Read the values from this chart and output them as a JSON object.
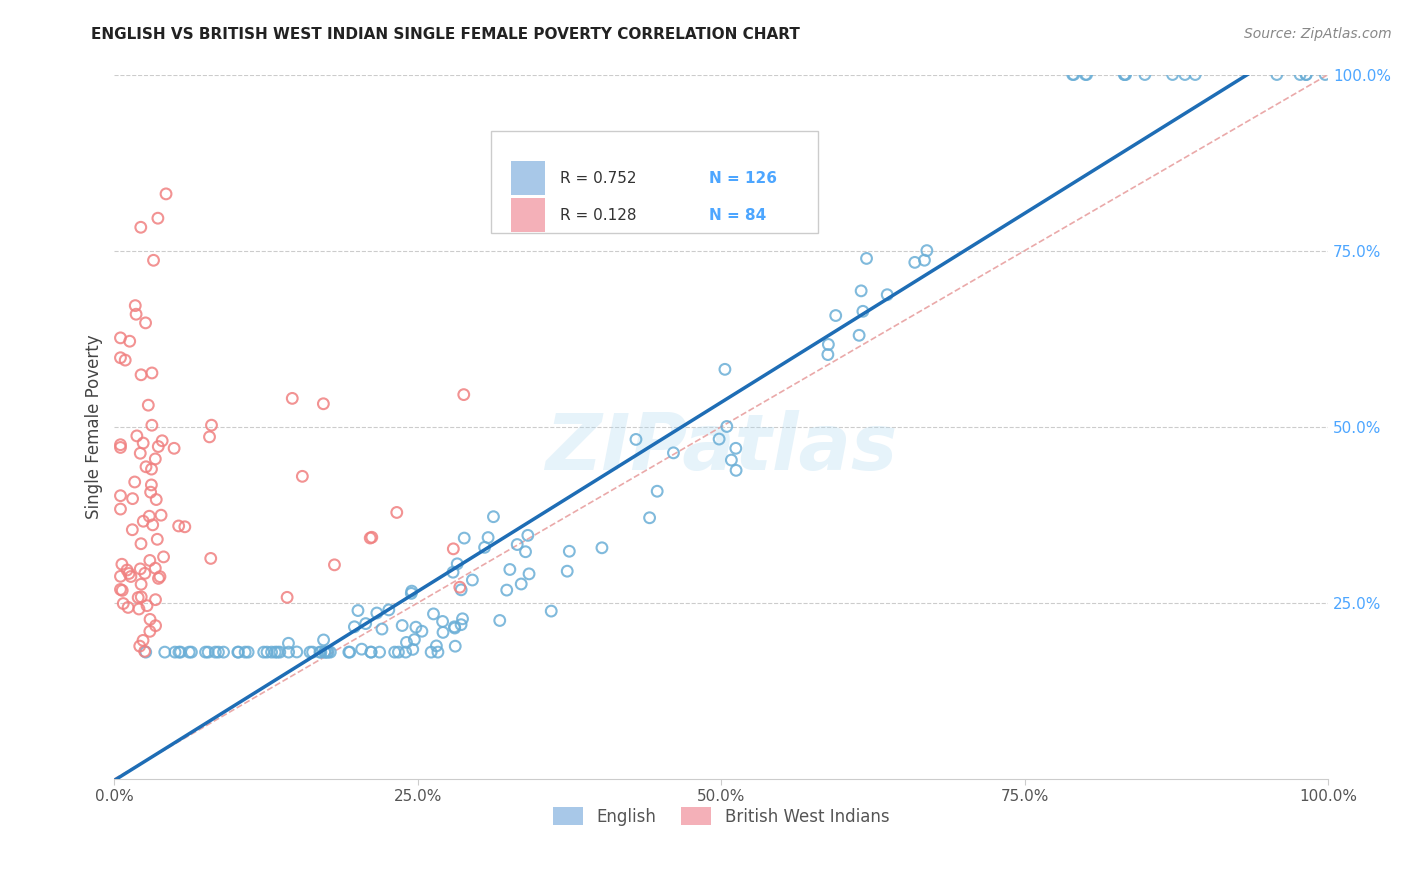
{
  "title": "ENGLISH VS BRITISH WEST INDIAN SINGLE FEMALE POVERTY CORRELATION CHART",
  "source": "Source: ZipAtlas.com",
  "ylabel": "Single Female Poverty",
  "watermark": "ZIPatlas",
  "english_R": 0.752,
  "english_N": 126,
  "bwi_R": 0.128,
  "bwi_N": 84,
  "english_color": "#6aaed6",
  "bwi_color": "#f08080",
  "regression_color": "#1e6db5",
  "diagonal_color": "#e8a0a0",
  "background_color": "#ffffff",
  "grid_color": "#cccccc",
  "xlim": [
    0,
    1
  ],
  "ylim": [
    0,
    1
  ],
  "xticks": [
    0.0,
    0.25,
    0.5,
    0.75,
    1.0
  ],
  "yticks": [
    0.25,
    0.5,
    0.75,
    1.0
  ],
  "xticklabels": [
    "0.0%",
    "25.0%",
    "50.0%",
    "75.0%",
    "100.0%"
  ],
  "yticklabels": [
    "25.0%",
    "50.0%",
    "75.0%",
    "100.0%"
  ],
  "marker_size": 60,
  "marker_linewidth": 1.5
}
